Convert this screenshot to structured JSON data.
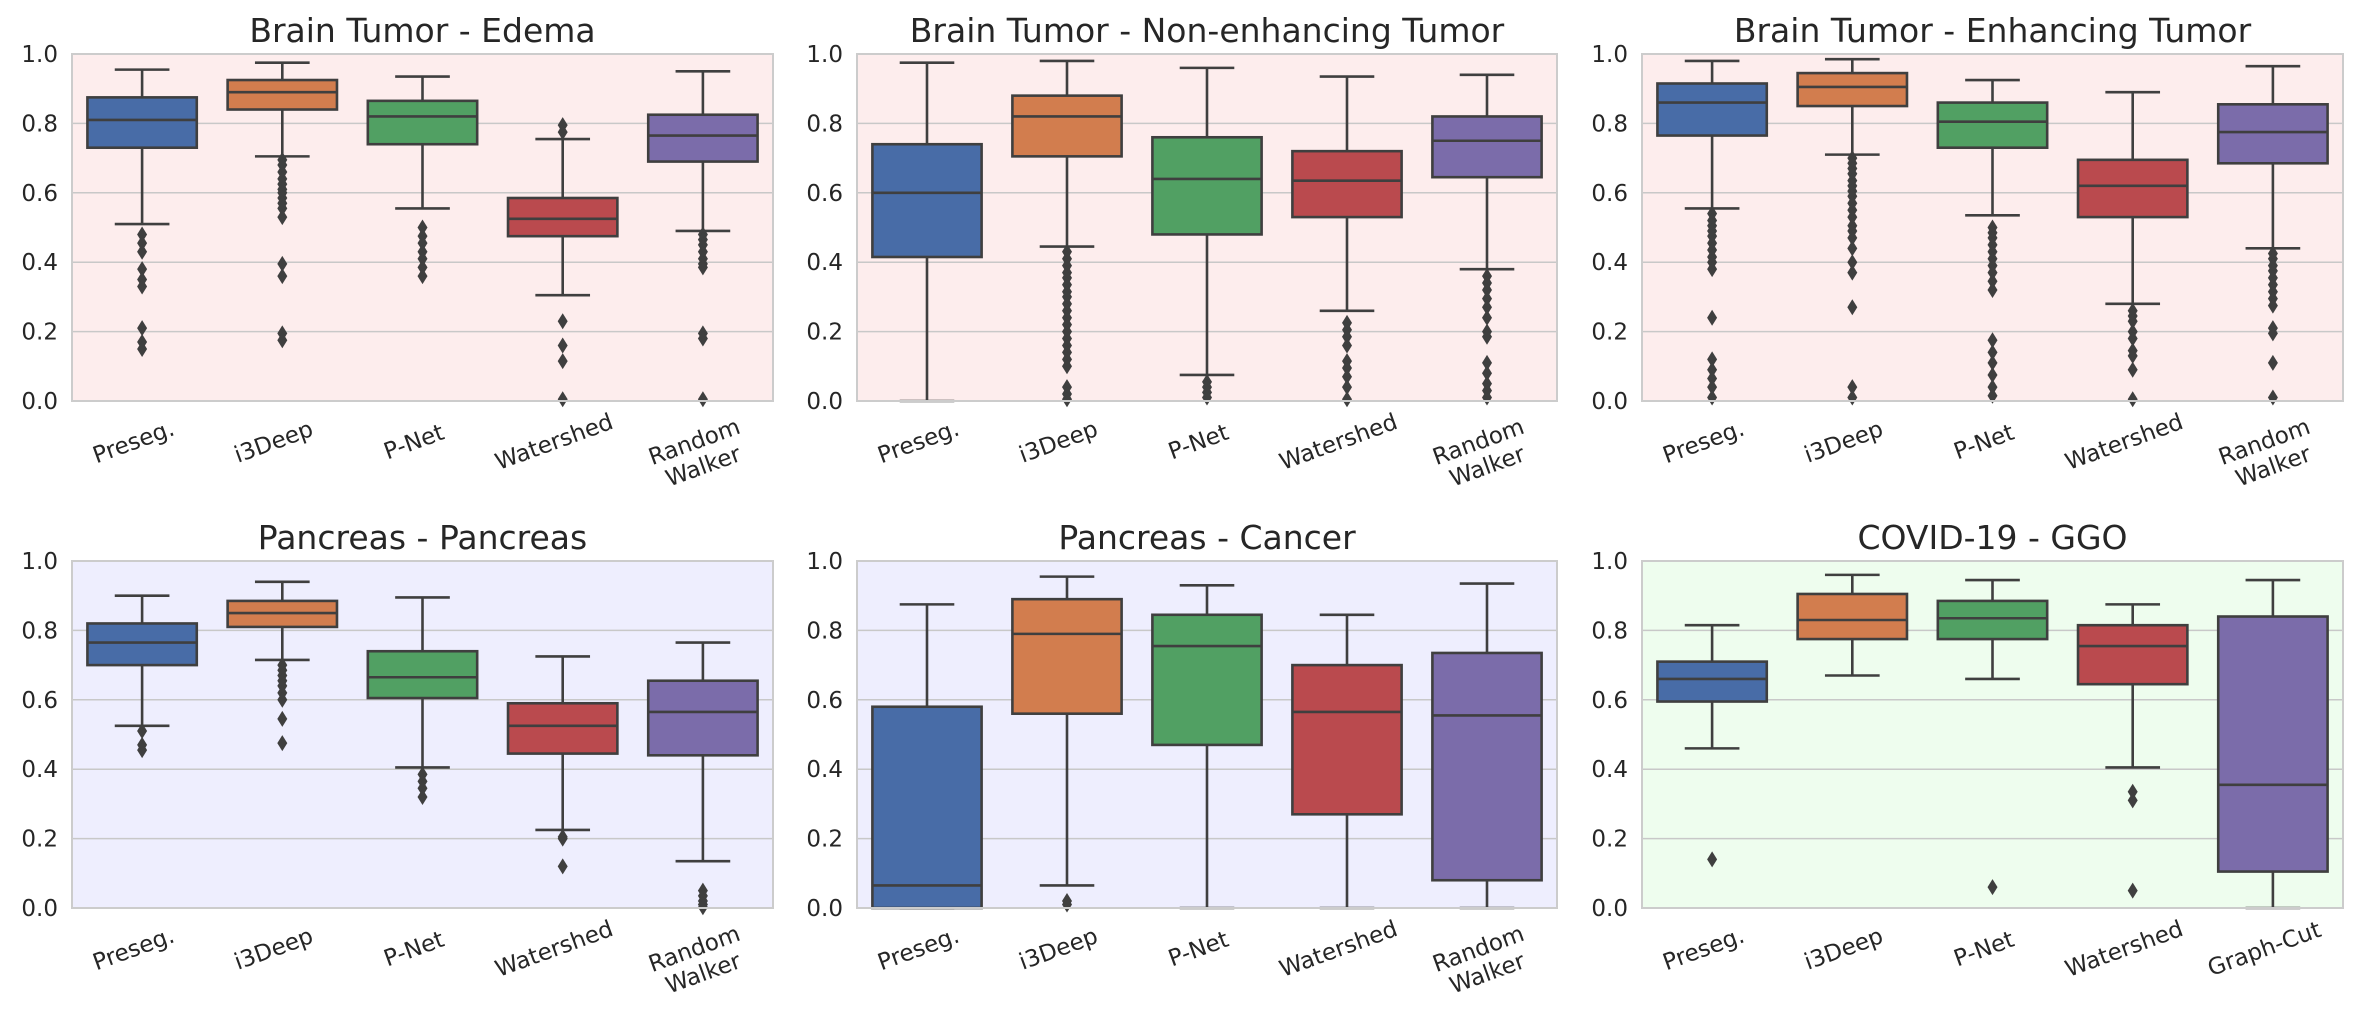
{
  "figure": {
    "background": "#ffffff"
  },
  "style": {
    "palette": [
      "#4C72B0",
      "#DD8452",
      "#55A868",
      "#C44E52",
      "#8172B3"
    ],
    "line_color": "#3f3f3f",
    "grid_color": "#c8c8c8",
    "spine_color": "#cccccc",
    "bg_brain": "#fdeded",
    "bg_pancreas": "#eeeefe",
    "bg_covid": "#eefdee"
  },
  "yticks": [
    "0.0",
    "0.2",
    "0.4",
    "0.6",
    "0.8",
    "1.0"
  ],
  "chart_data": [
    {
      "type": "box",
      "title": "Brain Tumor - Edema",
      "background": "#fdeded",
      "ylim": [
        0,
        1
      ],
      "grid": true,
      "categories": [
        "Preseg.",
        "i3Deep",
        "P-Net",
        "Watershed",
        "Random\nWalker"
      ],
      "boxes": [
        {
          "whislo": 0.51,
          "q1": 0.73,
          "med": 0.81,
          "q3": 0.875,
          "whishi": 0.955,
          "fliers": [
            0.48,
            0.455,
            0.43,
            0.38,
            0.35,
            0.33,
            0.21,
            0.17,
            0.15
          ]
        },
        {
          "whislo": 0.705,
          "q1": 0.84,
          "med": 0.89,
          "q3": 0.925,
          "whishi": 0.975,
          "fliers": [
            0.695,
            0.68,
            0.66,
            0.64,
            0.625,
            0.61,
            0.6,
            0.585,
            0.57,
            0.555,
            0.53,
            0.395,
            0.36,
            0.195,
            0.175
          ]
        },
        {
          "whislo": 0.555,
          "q1": 0.74,
          "med": 0.82,
          "q3": 0.865,
          "whishi": 0.935,
          "fliers": [
            0.5,
            0.475,
            0.455,
            0.43,
            0.41,
            0.385,
            0.36
          ]
        },
        {
          "whislo": 0.305,
          "q1": 0.475,
          "med": 0.525,
          "q3": 0.585,
          "whishi": 0.755,
          "fliers": [
            0.795,
            0.775,
            0.23,
            0.16,
            0.115,
            0.005
          ]
        },
        {
          "whislo": 0.49,
          "q1": 0.69,
          "med": 0.765,
          "q3": 0.825,
          "whishi": 0.95,
          "fliers": [
            0.48,
            0.465,
            0.45,
            0.43,
            0.41,
            0.395,
            0.385,
            0.195,
            0.18,
            0.005
          ]
        }
      ]
    },
    {
      "type": "box",
      "title": "Brain Tumor - Non-enhancing Tumor",
      "background": "#fdeded",
      "ylim": [
        0,
        1
      ],
      "grid": true,
      "categories": [
        "Preseg.",
        "i3Deep",
        "P-Net",
        "Watershed",
        "Random\nWalker"
      ],
      "boxes": [
        {
          "whislo": 0.0,
          "q1": 0.415,
          "med": 0.6,
          "q3": 0.74,
          "whishi": 0.975,
          "fliers": []
        },
        {
          "whislo": 0.445,
          "q1": 0.705,
          "med": 0.82,
          "q3": 0.88,
          "whishi": 0.98,
          "fliers": [
            0.43,
            0.41,
            0.39,
            0.37,
            0.355,
            0.335,
            0.315,
            0.3,
            0.28,
            0.26,
            0.24,
            0.22,
            0.2,
            0.18,
            0.16,
            0.14,
            0.12,
            0.1,
            0.04,
            0.02,
            0.005
          ]
        },
        {
          "whislo": 0.075,
          "q1": 0.48,
          "med": 0.64,
          "q3": 0.76,
          "whishi": 0.96,
          "fliers": [
            0.055,
            0.04,
            0.025,
            0.01
          ]
        },
        {
          "whislo": 0.26,
          "q1": 0.53,
          "med": 0.635,
          "q3": 0.72,
          "whishi": 0.935,
          "fliers": [
            0.225,
            0.205,
            0.185,
            0.16,
            0.115,
            0.095,
            0.07,
            0.04,
            0.005
          ]
        },
        {
          "whislo": 0.38,
          "q1": 0.645,
          "med": 0.75,
          "q3": 0.82,
          "whishi": 0.94,
          "fliers": [
            0.36,
            0.34,
            0.32,
            0.295,
            0.27,
            0.24,
            0.2,
            0.185,
            0.11,
            0.08,
            0.05,
            0.03,
            0.01
          ]
        }
      ]
    },
    {
      "type": "box",
      "title": "Brain Tumor - Enhancing Tumor",
      "background": "#fdeded",
      "ylim": [
        0,
        1
      ],
      "grid": true,
      "categories": [
        "Preseg.",
        "i3Deep",
        "P-Net",
        "Watershed",
        "Random\nWalker"
      ],
      "boxes": [
        {
          "whislo": 0.555,
          "q1": 0.765,
          "med": 0.86,
          "q3": 0.915,
          "whishi": 0.98,
          "fliers": [
            0.54,
            0.52,
            0.505,
            0.49,
            0.475,
            0.455,
            0.435,
            0.415,
            0.4,
            0.38,
            0.24,
            0.12,
            0.09,
            0.065,
            0.04,
            0.01
          ]
        },
        {
          "whislo": 0.71,
          "q1": 0.85,
          "med": 0.905,
          "q3": 0.945,
          "whishi": 0.985,
          "fliers": [
            0.7,
            0.685,
            0.67,
            0.655,
            0.635,
            0.62,
            0.605,
            0.59,
            0.57,
            0.55,
            0.53,
            0.505,
            0.49,
            0.47,
            0.44,
            0.4,
            0.37,
            0.27,
            0.04,
            0.01
          ]
        },
        {
          "whislo": 0.535,
          "q1": 0.73,
          "med": 0.805,
          "q3": 0.86,
          "whishi": 0.925,
          "fliers": [
            0.5,
            0.485,
            0.47,
            0.45,
            0.43,
            0.41,
            0.39,
            0.37,
            0.345,
            0.32,
            0.175,
            0.14,
            0.11,
            0.075,
            0.04,
            0.015
          ]
        },
        {
          "whislo": 0.28,
          "q1": 0.53,
          "med": 0.62,
          "q3": 0.695,
          "whishi": 0.89,
          "fliers": [
            0.26,
            0.245,
            0.23,
            0.2,
            0.18,
            0.145,
            0.13,
            0.09,
            0.005
          ]
        },
        {
          "whislo": 0.44,
          "q1": 0.685,
          "med": 0.775,
          "q3": 0.855,
          "whishi": 0.965,
          "fliers": [
            0.425,
            0.41,
            0.39,
            0.375,
            0.355,
            0.335,
            0.315,
            0.295,
            0.275,
            0.21,
            0.195,
            0.11,
            0.01
          ]
        }
      ]
    },
    {
      "type": "box",
      "title": "Pancreas - Pancreas",
      "background": "#eeeefe",
      "ylim": [
        0,
        1
      ],
      "grid": true,
      "categories": [
        "Preseg.",
        "i3Deep",
        "P-Net",
        "Watershed",
        "Random\nWalker"
      ],
      "boxes": [
        {
          "whislo": 0.525,
          "q1": 0.7,
          "med": 0.765,
          "q3": 0.82,
          "whishi": 0.9,
          "fliers": [
            0.51,
            0.47,
            0.455
          ]
        },
        {
          "whislo": 0.715,
          "q1": 0.81,
          "med": 0.85,
          "q3": 0.885,
          "whishi": 0.94,
          "fliers": [
            0.7,
            0.685,
            0.67,
            0.655,
            0.64,
            0.62,
            0.6,
            0.545,
            0.475
          ]
        },
        {
          "whislo": 0.405,
          "q1": 0.605,
          "med": 0.665,
          "q3": 0.74,
          "whishi": 0.895,
          "fliers": [
            0.385,
            0.365,
            0.345,
            0.32
          ]
        },
        {
          "whislo": 0.225,
          "q1": 0.445,
          "med": 0.525,
          "q3": 0.59,
          "whishi": 0.725,
          "fliers": [
            0.205,
            0.2,
            0.12
          ]
        },
        {
          "whislo": 0.135,
          "q1": 0.44,
          "med": 0.565,
          "q3": 0.655,
          "whishi": 0.765,
          "fliers": [
            0.05,
            0.035,
            0.02,
            0.01,
            0.002
          ]
        }
      ]
    },
    {
      "type": "box",
      "title": "Pancreas - Cancer",
      "background": "#eeeefe",
      "ylim": [
        0,
        1
      ],
      "grid": true,
      "categories": [
        "Preseg.",
        "i3Deep",
        "P-Net",
        "Watershed",
        "Random\nWalker"
      ],
      "boxes": [
        {
          "whislo": 0.0,
          "q1": 0.0,
          "med": 0.065,
          "q3": 0.58,
          "whishi": 0.875,
          "fliers": []
        },
        {
          "whislo": 0.065,
          "q1": 0.56,
          "med": 0.79,
          "q3": 0.89,
          "whishi": 0.955,
          "fliers": [
            0.02,
            0.01
          ]
        },
        {
          "whislo": 0.0,
          "q1": 0.47,
          "med": 0.755,
          "q3": 0.845,
          "whishi": 0.93,
          "fliers": []
        },
        {
          "whislo": 0.0,
          "q1": 0.27,
          "med": 0.565,
          "q3": 0.7,
          "whishi": 0.845,
          "fliers": []
        },
        {
          "whislo": 0.0,
          "q1": 0.08,
          "med": 0.555,
          "q3": 0.735,
          "whishi": 0.935,
          "fliers": []
        }
      ]
    },
    {
      "type": "box",
      "title": "COVID-19 - GGO",
      "background": "#eefdee",
      "ylim": [
        0,
        1
      ],
      "grid": true,
      "categories": [
        "Preseg.",
        "i3Deep",
        "P-Net",
        "Watershed",
        "Graph-Cut"
      ],
      "boxes": [
        {
          "whislo": 0.46,
          "q1": 0.595,
          "med": 0.66,
          "q3": 0.71,
          "whishi": 0.815,
          "fliers": [
            0.14
          ]
        },
        {
          "whislo": 0.67,
          "q1": 0.775,
          "med": 0.83,
          "q3": 0.905,
          "whishi": 0.96,
          "fliers": []
        },
        {
          "whislo": 0.66,
          "q1": 0.775,
          "med": 0.835,
          "q3": 0.885,
          "whishi": 0.945,
          "fliers": [
            0.06
          ]
        },
        {
          "whislo": 0.405,
          "q1": 0.645,
          "med": 0.755,
          "q3": 0.815,
          "whishi": 0.875,
          "fliers": [
            0.335,
            0.31,
            0.05
          ]
        },
        {
          "whislo": 0.0,
          "q1": 0.105,
          "med": 0.355,
          "q3": 0.84,
          "whishi": 0.945,
          "fliers": []
        }
      ]
    }
  ]
}
